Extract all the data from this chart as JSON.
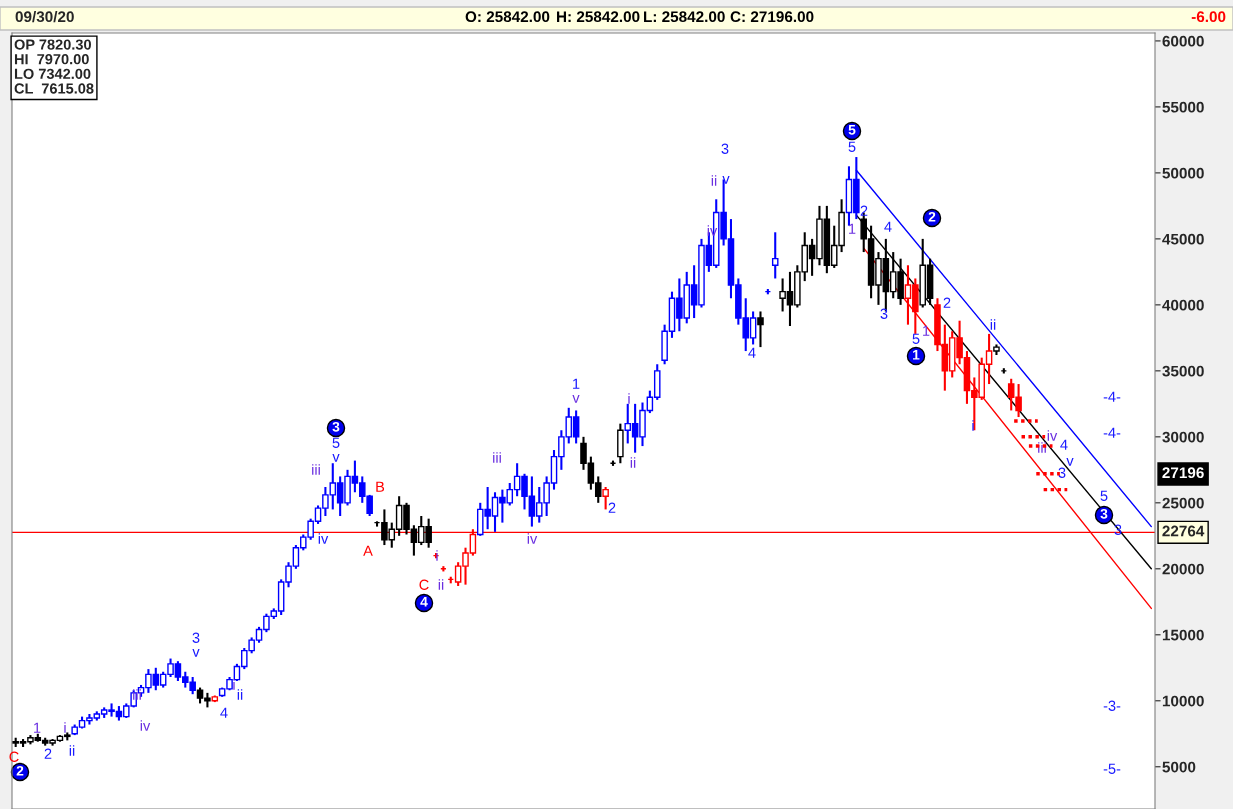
{
  "chart_data": {
    "type": "candlestick",
    "title": "09/30/20",
    "categories": [
      null,
      null,
      null,
      null,
      null,
      null,
      null,
      null,
      null,
      null,
      null,
      null,
      null,
      null,
      null,
      null,
      null,
      null,
      null,
      null,
      null,
      null,
      null,
      null,
      null,
      null,
      null,
      null,
      null,
      null,
      null,
      null,
      null,
      null,
      null,
      null,
      null,
      null,
      null,
      null,
      null,
      null,
      null,
      null,
      null,
      null,
      null,
      null,
      null,
      null,
      null,
      null,
      null,
      null,
      null,
      null,
      null,
      null,
      null,
      null,
      null,
      null,
      null,
      null,
      null,
      null,
      null,
      null,
      null,
      null,
      null,
      null,
      null,
      null,
      null,
      null,
      null,
      null,
      null,
      null,
      null,
      null,
      null,
      null,
      null,
      null,
      null,
      null,
      null,
      null,
      null,
      null,
      null,
      null,
      null,
      null,
      null,
      null,
      null,
      null,
      null,
      null,
      null,
      null,
      null,
      null,
      null,
      null,
      null,
      null,
      null,
      null,
      null,
      null,
      null,
      null,
      null,
      null,
      null,
      null,
      null,
      null,
      null,
      null,
      null,
      null,
      null,
      null,
      null,
      null,
      null,
      null,
      null,
      null,
      null,
      null,
      null,
      null,
      null,
      null,
      null,
      null,
      null,
      null,
      null,
      null,
      null,
      null,
      null,
      null,
      null,
      null,
      null,
      null,
      null
    ],
    "ohlc": [
      [
        6900,
        7200,
        6500,
        6800
      ],
      [
        6800,
        7100,
        6500,
        6900
      ],
      [
        6900,
        7400,
        6700,
        7200
      ],
      [
        7200,
        7500,
        6900,
        7000
      ],
      [
        7000,
        7200,
        6600,
        6800
      ],
      [
        6800,
        7100,
        6600,
        7000
      ],
      [
        7000,
        7400,
        6900,
        7300
      ],
      [
        7300,
        7600,
        7000,
        7400
      ],
      [
        7500,
        8200,
        7400,
        8000
      ],
      [
        8000,
        8800,
        7900,
        8500
      ],
      [
        8500,
        9000,
        8200,
        8700
      ],
      [
        8700,
        9200,
        8500,
        9000
      ],
      [
        9000,
        9500,
        8700,
        9300
      ],
      [
        9300,
        9800,
        8800,
        9200
      ],
      [
        9200,
        9600,
        8500,
        8800
      ],
      [
        8800,
        9800,
        8700,
        9600
      ],
      [
        9600,
        10800,
        9500,
        10600
      ],
      [
        10600,
        11200,
        10300,
        11000
      ],
      [
        11000,
        12400,
        10600,
        12000
      ],
      [
        12000,
        12500,
        10800,
        11200
      ],
      [
        11200,
        12200,
        11000,
        12000
      ],
      [
        12000,
        13200,
        11800,
        12800
      ],
      [
        12800,
        13000,
        11500,
        11800
      ],
      [
        11800,
        12200,
        11000,
        11400
      ],
      [
        11400,
        11800,
        10500,
        10800
      ],
      [
        10800,
        11000,
        9800,
        10200
      ],
      [
        10200,
        10600,
        9500,
        10000
      ],
      [
        10000,
        10400,
        9900,
        10300
      ],
      [
        10400,
        11000,
        10300,
        10900
      ],
      [
        10900,
        11800,
        10800,
        11600
      ],
      [
        11600,
        12800,
        11500,
        12600
      ],
      [
        12600,
        14000,
        12400,
        13800
      ],
      [
        13800,
        14800,
        13600,
        14600
      ],
      [
        14600,
        15600,
        14400,
        15400
      ],
      [
        15400,
        16600,
        15200,
        16400
      ],
      [
        16400,
        17000,
        16200,
        16800
      ],
      [
        16800,
        19200,
        16500,
        19000
      ],
      [
        19000,
        20500,
        18600,
        20200
      ],
      [
        20200,
        21800,
        20000,
        21600
      ],
      [
        21600,
        22600,
        21400,
        22400
      ],
      [
        22400,
        23800,
        22200,
        23600
      ],
      [
        23600,
        24800,
        23400,
        24600
      ],
      [
        24600,
        26200,
        24000,
        25600
      ],
      [
        25600,
        28000,
        24500,
        26500
      ],
      [
        26500,
        27000,
        24000,
        25000
      ],
      [
        25000,
        27500,
        24800,
        27000
      ],
      [
        27000,
        28200,
        25800,
        26500
      ],
      [
        26500,
        27000,
        25000,
        25500
      ],
      [
        25500,
        25600,
        24000,
        24200
      ],
      [
        23500,
        23600,
        23200,
        23500
      ],
      [
        23500,
        24500,
        21800,
        22200
      ],
      [
        22200,
        23500,
        21600,
        23000
      ],
      [
        23000,
        25500,
        22500,
        24800
      ],
      [
        24800,
        25000,
        22600,
        23000
      ],
      [
        23000,
        23300,
        21000,
        22000
      ],
      [
        22000,
        24000,
        21800,
        23200
      ],
      [
        23200,
        23800,
        21600,
        22000
      ],
      [
        21000,
        21200,
        20800,
        21000
      ],
      [
        20000,
        20200,
        19800,
        20000
      ],
      [
        19200,
        19400,
        18900,
        19200
      ],
      [
        19000,
        20500,
        18700,
        20200
      ],
      [
        20200,
        21600,
        18800,
        21200
      ],
      [
        21200,
        23000,
        21000,
        22600
      ],
      [
        22600,
        25000,
        22500,
        24500
      ],
      [
        24500,
        26200,
        23000,
        24000
      ],
      [
        24000,
        25800,
        22800,
        25400
      ],
      [
        25400,
        26000,
        23500,
        25000
      ],
      [
        25000,
        26500,
        24800,
        26000
      ],
      [
        26000,
        28000,
        25500,
        27000
      ],
      [
        27000,
        27200,
        24500,
        25500
      ],
      [
        25500,
        27000,
        23200,
        24000
      ],
      [
        24000,
        26200,
        23500,
        25000
      ],
      [
        25000,
        27000,
        24000,
        26500
      ],
      [
        26500,
        29000,
        26000,
        28500
      ],
      [
        28500,
        30500,
        27500,
        30000
      ],
      [
        30000,
        32200,
        29500,
        31500
      ],
      [
        31500,
        32000,
        29500,
        30000
      ],
      [
        29500,
        30000,
        27500,
        28000
      ],
      [
        28000,
        28500,
        26000,
        26500
      ],
      [
        26500,
        27000,
        25000,
        25500
      ],
      [
        25500,
        26200,
        24500,
        26000
      ],
      [
        28000,
        28200,
        27800,
        28000
      ],
      [
        28500,
        31000,
        28000,
        30500
      ],
      [
        30500,
        32500,
        29500,
        31000
      ],
      [
        31000,
        32500,
        28800,
        30000
      ],
      [
        30000,
        32600,
        29300,
        32000
      ],
      [
        32000,
        33500,
        31800,
        33000
      ],
      [
        33000,
        35500,
        32800,
        35000
      ],
      [
        35800,
        38500,
        35500,
        38000
      ],
      [
        38000,
        41000,
        37500,
        40500
      ],
      [
        40500,
        42000,
        38000,
        39000
      ],
      [
        39000,
        42500,
        38600,
        41500
      ],
      [
        41500,
        43000,
        39000,
        40000
      ],
      [
        40000,
        45000,
        39800,
        44500
      ],
      [
        44500,
        45500,
        42500,
        43000
      ],
      [
        43000,
        48000,
        42800,
        47000
      ],
      [
        47000,
        49500,
        44500,
        45000
      ],
      [
        45000,
        46500,
        40500,
        41500
      ],
      [
        41500,
        42000,
        38500,
        39000
      ],
      [
        39000,
        40500,
        36500,
        37500
      ],
      [
        37500,
        39500,
        37000,
        39000
      ],
      [
        39000,
        39500,
        36800,
        38500
      ],
      [
        41000,
        41200,
        40800,
        41000
      ],
      [
        43000,
        45500,
        42000,
        43500
      ],
      [
        40500,
        42000,
        39500,
        41000
      ],
      [
        41000,
        42500,
        38400,
        40000
      ],
      [
        40000,
        43000,
        39800,
        42500
      ],
      [
        42500,
        45500,
        41800,
        44500
      ],
      [
        44500,
        45000,
        42200,
        43500
      ],
      [
        43500,
        47500,
        43000,
        46500
      ],
      [
        46500,
        47500,
        42400,
        43000
      ],
      [
        43000,
        46000,
        42800,
        44500
      ],
      [
        44500,
        48000,
        44000,
        47000
      ],
      [
        47000,
        50500,
        46000,
        49500
      ],
      [
        49500,
        51200,
        46500,
        47000
      ],
      [
        46500,
        47000,
        44000,
        45000
      ],
      [
        45000,
        46000,
        40500,
        41500
      ],
      [
        41500,
        44000,
        40000,
        43500
      ],
      [
        43500,
        45000,
        39500,
        41000
      ],
      [
        41000,
        44000,
        40500,
        42500
      ],
      [
        42500,
        43500,
        40000,
        40500
      ],
      [
        40500,
        43000,
        38500,
        41500
      ],
      [
        41500,
        42000,
        37800,
        39500
      ],
      [
        40000,
        45000,
        39800,
        43000
      ],
      [
        43000,
        43500,
        40000,
        40500
      ],
      [
        40000,
        40500,
        36500,
        37000
      ],
      [
        37000,
        38500,
        33500,
        35000
      ],
      [
        35000,
        38000,
        34500,
        37500
      ],
      [
        37500,
        38800,
        35500,
        36000
      ],
      [
        36000,
        36500,
        32500,
        33500
      ],
      [
        33500,
        34500,
        30500,
        33000
      ],
      [
        33000,
        36000,
        32800,
        35500
      ],
      [
        35500,
        37800,
        34000,
        36500
      ],
      [
        36500,
        37000,
        36200,
        36800
      ],
      [
        35000,
        35200,
        34800,
        35000
      ],
      [
        34000,
        34400,
        32000,
        33000
      ],
      [
        33000,
        34000,
        31500,
        32000
      ],
      [
        31200,
        31200,
        31200,
        31200
      ],
      [
        30000,
        30000,
        30000,
        30000
      ],
      [
        29300,
        29300,
        29300,
        29300
      ],
      [
        27200,
        27200,
        27200,
        27200
      ],
      [
        26000,
        26000,
        26000,
        26000
      ],
      null,
      null,
      null,
      null,
      null,
      null,
      null,
      null,
      null,
      null,
      null,
      null,
      null
    ],
    "colors": [
      "#000000",
      "#000000",
      "#000000",
      "#000000",
      "#000000",
      "#000000",
      "#000000",
      "#000000",
      "#0000ff",
      "#0000ff",
      "#0000ff",
      "#0000ff",
      "#0000ff",
      "#0000ff",
      "#0000ff",
      "#0000ff",
      "#0000ff",
      "#0000ff",
      "#0000ff",
      "#0000ff",
      "#0000ff",
      "#0000ff",
      "#0000ff",
      "#0000ff",
      "#0000ff",
      "#000000",
      "#000000",
      "#ff0000",
      "#0000ff",
      "#0000ff",
      "#0000ff",
      "#0000ff",
      "#0000ff",
      "#0000ff",
      "#0000ff",
      "#0000ff",
      "#0000ff",
      "#0000ff",
      "#0000ff",
      "#0000ff",
      "#0000ff",
      "#0000ff",
      "#0000ff",
      "#0000ff",
      "#0000ff",
      "#0000ff",
      "#0000ff",
      "#0000ff",
      "#0000ff",
      "#000000",
      "#000000",
      "#000000",
      "#000000",
      "#000000",
      "#000000",
      "#000000",
      "#000000",
      "#ff0000",
      "#ff0000",
      "#ff0000",
      "#ff0000",
      "#ff0000",
      "#ff0000",
      "#0000ff",
      "#0000ff",
      "#0000ff",
      "#0000ff",
      "#0000ff",
      "#0000ff",
      "#0000ff",
      "#0000ff",
      "#0000ff",
      "#0000ff",
      "#0000ff",
      "#0000ff",
      "#0000ff",
      "#0000ff",
      "#000000",
      "#000000",
      "#000000",
      "#ff0000",
      "#000000",
      "#000000",
      "#0000ff",
      "#0000ff",
      "#0000ff",
      "#0000ff",
      "#0000ff",
      "#0000ff",
      "#0000ff",
      "#0000ff",
      "#0000ff",
      "#0000ff",
      "#0000ff",
      "#0000ff",
      "#0000ff",
      "#0000ff",
      "#0000ff",
      "#0000ff",
      "#0000ff",
      "#0000ff",
      "#000000",
      "#0000ff",
      "#0000ff",
      "#000000",
      "#000000",
      "#000000",
      "#000000",
      "#000000",
      "#000000",
      "#000000",
      "#000000",
      "#000000",
      "#0000ff",
      "#0000ff",
      "#000000",
      "#000000",
      "#000000",
      "#000000",
      "#000000",
      "#000000",
      "#ff0000",
      "#ff0000",
      "#000000",
      "#000000",
      "#ff0000",
      "#ff0000",
      "#ff0000",
      "#ff0000",
      "#ff0000",
      "#ff0000",
      "#ff0000",
      "#ff0000",
      "#000000",
      "#000000",
      "#ff0000",
      "#ff0000",
      "#ff0000",
      "#ff0000",
      "#ff0000",
      "#ff0000",
      "#ff0000",
      null,
      null,
      null,
      null,
      null,
      null,
      null,
      null,
      null,
      null,
      null,
      null,
      null
    ],
    "series": [
      {
        "type": "line",
        "color": "#0000ff",
        "values": [
          null,
          null,
          null,
          null,
          null,
          null,
          null,
          null,
          null,
          null,
          null,
          null,
          null,
          null,
          null,
          null,
          null,
          null,
          null,
          null,
          null,
          null,
          null,
          null,
          null,
          null,
          null,
          null,
          null,
          null,
          null,
          null,
          null,
          null,
          null,
          null,
          null,
          null,
          null,
          null,
          null,
          null,
          null,
          null,
          null,
          null,
          null,
          null,
          null,
          null,
          null,
          null,
          null,
          null,
          null,
          null,
          null,
          null,
          null,
          null,
          null,
          null,
          null,
          null,
          null,
          null,
          null,
          null,
          null,
          null,
          null,
          null,
          null,
          null,
          null,
          null,
          null,
          null,
          null,
          null,
          null,
          null,
          null,
          null,
          null,
          null,
          null,
          null,
          null,
          null,
          null,
          null,
          null,
          null,
          null,
          null,
          null,
          null,
          null,
          null,
          null,
          null,
          null,
          null,
          null,
          null,
          null,
          null,
          null,
          null,
          null,
          null,
          null,
          null,
          50200,
          null,
          null,
          null,
          null,
          null,
          null,
          null,
          null,
          null,
          null,
          null,
          null,
          null,
          null,
          null,
          null,
          null,
          null,
          null,
          null,
          null,
          null,
          null,
          null,
          null,
          null,
          null,
          null,
          null,
          null,
          null,
          null,
          null,
          null,
          null,
          null,
          null,
          null,
          null,
          23200
        ]
      },
      {
        "type": "line",
        "color": "#000000",
        "values": [
          null,
          null,
          null,
          null,
          null,
          null,
          null,
          null,
          null,
          null,
          null,
          null,
          null,
          null,
          null,
          null,
          null,
          null,
          null,
          null,
          null,
          null,
          null,
          null,
          null,
          null,
          null,
          null,
          null,
          null,
          null,
          null,
          null,
          null,
          null,
          null,
          null,
          null,
          null,
          null,
          null,
          null,
          null,
          null,
          null,
          null,
          null,
          null,
          null,
          null,
          null,
          null,
          null,
          null,
          null,
          null,
          null,
          null,
          null,
          null,
          null,
          null,
          null,
          null,
          null,
          null,
          null,
          null,
          null,
          null,
          null,
          null,
          null,
          null,
          null,
          null,
          null,
          null,
          null,
          null,
          null,
          null,
          null,
          null,
          null,
          null,
          null,
          null,
          null,
          null,
          null,
          null,
          null,
          null,
          null,
          null,
          null,
          null,
          null,
          null,
          null,
          null,
          null,
          null,
          null,
          null,
          null,
          null,
          null,
          null,
          null,
          null,
          null,
          null,
          46800,
          null,
          null,
          null,
          null,
          null,
          null,
          null,
          null,
          null,
          null,
          null,
          null,
          null,
          null,
          null,
          null,
          null,
          null,
          null,
          null,
          null,
          null,
          null,
          null,
          null,
          null,
          null,
          null,
          null,
          null,
          null,
          null,
          null,
          null,
          null,
          null,
          null,
          null,
          null,
          20000
        ]
      },
      {
        "type": "line",
        "color": "#ff0000",
        "values": [
          null,
          null,
          null,
          null,
          null,
          null,
          null,
          null,
          null,
          null,
          null,
          null,
          null,
          null,
          null,
          null,
          null,
          null,
          null,
          null,
          null,
          null,
          null,
          null,
          null,
          null,
          null,
          null,
          null,
          null,
          null,
          null,
          null,
          null,
          null,
          null,
          null,
          null,
          null,
          null,
          null,
          null,
          null,
          null,
          null,
          null,
          null,
          null,
          null,
          null,
          null,
          null,
          null,
          null,
          null,
          null,
          null,
          null,
          null,
          null,
          null,
          null,
          null,
          null,
          null,
          null,
          null,
          null,
          null,
          null,
          null,
          null,
          null,
          null,
          null,
          null,
          null,
          null,
          null,
          null,
          null,
          null,
          null,
          null,
          null,
          null,
          null,
          null,
          null,
          null,
          null,
          null,
          null,
          null,
          null,
          null,
          null,
          null,
          null,
          null,
          null,
          null,
          null,
          null,
          null,
          null,
          null,
          null,
          null,
          null,
          null,
          null,
          null,
          null,
          null,
          44300,
          null,
          null,
          null,
          null,
          null,
          null,
          null,
          null,
          null,
          null,
          null,
          null,
          null,
          null,
          null,
          null,
          null,
          null,
          null,
          null,
          null,
          null,
          null,
          null,
          null,
          null,
          null,
          null,
          null,
          null,
          null,
          null,
          null,
          null,
          null,
          null,
          null,
          null,
          17000
        ]
      }
    ],
    "ylim": [
      1800,
      60600
    ],
    "yticks": [
      5000,
      10000,
      15000,
      20000,
      25000,
      30000,
      35000,
      40000,
      45000,
      50000,
      55000,
      60000
    ],
    "ref_lines": [
      {
        "axis": "y",
        "value": 22764,
        "label": "22764",
        "color": "#ff0000"
      }
    ],
    "annotations": [
      "O: 25842.00",
      "H: 25842.00",
      "L: 25842.00",
      "C: 27196.00",
      "-6.00",
      "OP 7820.30",
      "HI  7970.00",
      "LO 7342.00",
      "CL  7615.08",
      "C",
      "2",
      "1",
      "2",
      "i",
      "ii",
      "iii",
      "iv",
      "3",
      "v",
      "4",
      "i",
      "ii",
      "iii",
      "iv",
      "5",
      "v",
      "3",
      "B",
      "A",
      "C",
      "4",
      "i",
      "ii",
      "iii",
      "iv",
      "1",
      "v",
      "2",
      "i",
      "ii",
      "3",
      "ii",
      "v",
      "iv",
      "4",
      "5",
      "5",
      "2",
      "1",
      "4",
      "3",
      "5",
      "1",
      "2",
      "2",
      "1",
      "ii",
      "i",
      "iv",
      "iii",
      "4",
      "v",
      "3",
      "5",
      "3",
      "3",
      "-4-",
      "-4-",
      "-3-",
      "-5-",
      "27196"
    ]
  }
}
